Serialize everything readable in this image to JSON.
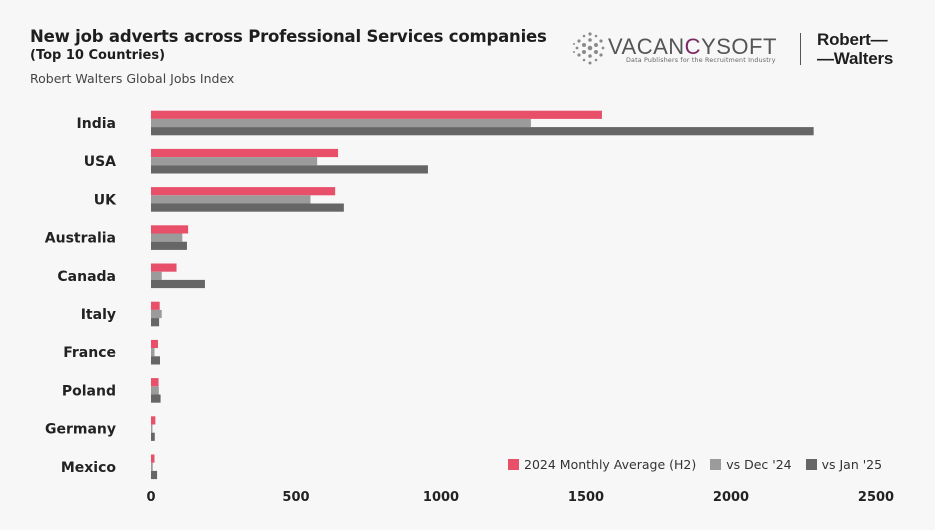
{
  "header": {
    "title": "New job adverts across Professional Services companies",
    "subtitle": "(Top 10 Countries)",
    "source": "Robert Walters Global Jobs Index"
  },
  "logos": {
    "vacancysoft_name_a": "VACAN",
    "vacancysoft_name_c": "C",
    "vacancysoft_name_b": "YSOFT",
    "vacancysoft_tagline": "Data Publishers for the Recruitment Industry",
    "robert_walters_line1": "Robert—",
    "robert_walters_line2": "—Walters"
  },
  "colors": {
    "background": "#f7f7f7",
    "series_2024": "#e8506a",
    "series_dec": "#9b9b9b",
    "series_jan": "#666666"
  },
  "chart_data": {
    "type": "bar",
    "orientation": "horizontal",
    "categories": [
      "India",
      "USA",
      "UK",
      "Australia",
      "Canada",
      "Italy",
      "France",
      "Poland",
      "Germany",
      "Mexico"
    ],
    "series": [
      {
        "name": "2024 Monthly Average (H2)",
        "values": [
          1555,
          645,
          635,
          128,
          88,
          30,
          24,
          26,
          15,
          12
        ]
      },
      {
        "name": "vs Dec '24",
        "values": [
          1310,
          573,
          550,
          108,
          37,
          37,
          12,
          27,
          5,
          6
        ]
      },
      {
        "name": "vs Jan '25",
        "values": [
          2285,
          955,
          665,
          124,
          186,
          28,
          31,
          33,
          13,
          21
        ]
      }
    ],
    "xlim": [
      0,
      2500
    ],
    "xticks": [
      "0",
      "500",
      "1000",
      "1500",
      "2000",
      "2500"
    ],
    "grid": false,
    "legend": "bottom-right"
  }
}
